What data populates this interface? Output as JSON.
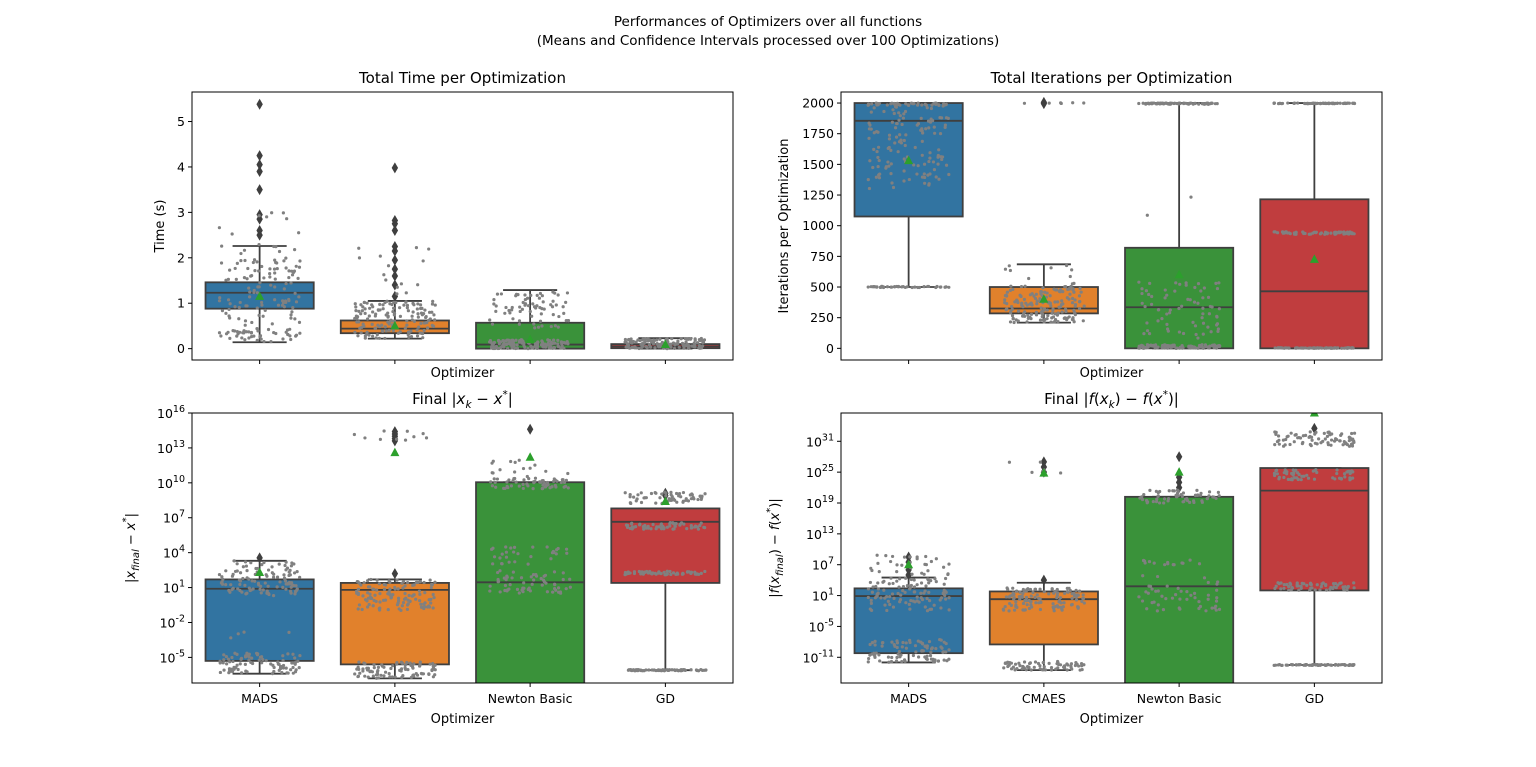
{
  "figure": {
    "suptitle_line1": "Performances of Optimizers over all functions",
    "suptitle_line2": "(Means and Confidence Intervals processed over 100 Optimizations)"
  },
  "colors": {
    "MADS": "#3274a1",
    "CMAES": "#e1812c",
    "Newton Basic": "#3a923a",
    "GD": "#c03d3e",
    "points": "#808080",
    "mean_marker": "#2ca02c",
    "box_edge": "#3f3f3f"
  },
  "chart_data": [
    {
      "type": "box",
      "title": "Total Time per Optimization",
      "xlabel": "Optimizer",
      "ylabel": "Time (s)",
      "categories": [
        "MADS",
        "CMAES",
        "Newton Basic",
        "GD"
      ],
      "show_xticklabels": false,
      "scale": "linear",
      "ylim": [
        -0.25,
        5.65
      ],
      "yticks": [
        0,
        1,
        2,
        3,
        4,
        5
      ],
      "ytick_labels": [
        "0",
        "1",
        "2",
        "3",
        "4",
        "5"
      ],
      "boxes": [
        {
          "q1": 0.88,
          "median": 1.23,
          "q3": 1.46,
          "whisker_low": 0.14,
          "whisker_high": 2.26,
          "mean": 1.15,
          "fliers": [
            2.5,
            2.6,
            2.85,
            2.95,
            3.5,
            3.9,
            4.05,
            4.25,
            5.38
          ],
          "clusters": [
            [
              0.15,
              0.45,
              45
            ],
            [
              0.5,
              2.3,
              110
            ],
            [
              2.5,
              3.0,
              8
            ]
          ]
        },
        {
          "q1": 0.34,
          "median": 0.44,
          "q3": 0.62,
          "whisker_low": 0.22,
          "whisker_high": 1.05,
          "mean": 0.5,
          "fliers": [
            1.15,
            1.4,
            1.6,
            1.75,
            1.95,
            2.15,
            2.25,
            2.6,
            2.75,
            2.82,
            3.98
          ],
          "clusters": [
            [
              0.22,
              1.05,
              150
            ],
            [
              1.1,
              2.3,
              14
            ]
          ]
        },
        {
          "q1": 0.0,
          "median": 0.09,
          "q3": 0.57,
          "whisker_low": 0.0,
          "whisker_high": 1.29,
          "mean": 0.2,
          "fliers": [],
          "clusters": [
            [
              0.0,
              0.2,
              120
            ],
            [
              0.45,
              1.25,
              70
            ]
          ]
        },
        {
          "q1": 0.01,
          "median": 0.05,
          "q3": 0.1,
          "whisker_low": 0.0,
          "whisker_high": 0.23,
          "mean": 0.09,
          "fliers": [],
          "clusters": [
            [
              0.0,
              0.23,
              130
            ]
          ]
        }
      ]
    },
    {
      "type": "box",
      "title": "Total Iterations per Optimization",
      "xlabel": "Optimizer",
      "ylabel": "Iterations per Optimization",
      "categories": [
        "MADS",
        "CMAES",
        "Newton Basic",
        "GD"
      ],
      "show_xticklabels": false,
      "scale": "linear",
      "ylim": [
        -95,
        2090
      ],
      "yticks": [
        0,
        250,
        500,
        750,
        1000,
        1250,
        1500,
        1750,
        2000
      ],
      "ytick_labels": [
        "0",
        "250",
        "500",
        "750",
        "1000",
        "1250",
        "1500",
        "1750",
        "2000"
      ],
      "boxes": [
        {
          "q1": 1075,
          "median": 1855,
          "q3": 2000,
          "whisker_low": 500,
          "whisker_high": 2000,
          "mean": 1530,
          "fliers": [],
          "clusters": [
            [
              495,
              505,
              40
            ],
            [
              1300,
              2000,
              130
            ],
            [
              1980,
              2000,
              40
            ]
          ]
        },
        {
          "q1": 285,
          "median": 325,
          "q3": 500,
          "whisker_low": 210,
          "whisker_high": 685,
          "mean": 400,
          "fliers": [
            1995,
            2005
          ],
          "clusters": [
            [
              210,
              510,
              160
            ],
            [
              510,
              680,
              10
            ],
            [
              1995,
              2005,
              6
            ]
          ]
        },
        {
          "q1": 0,
          "median": 335,
          "q3": 820,
          "whisker_low": 0,
          "whisker_high": 2000,
          "mean": 600,
          "fliers": [],
          "clusters": [
            [
              0,
              30,
              100
            ],
            [
              80,
              550,
              70
            ],
            [
              1990,
              2000,
              70
            ],
            [
              950,
              1300,
              2
            ]
          ]
        },
        {
          "q1": 0,
          "median": 465,
          "q3": 1215,
          "whisker_low": 0,
          "whisker_high": 2000,
          "mean": 725,
          "fliers": [],
          "clusters": [
            [
              0,
              5,
              60
            ],
            [
              930,
              950,
              60
            ],
            [
              1995,
              2000,
              70
            ]
          ]
        }
      ]
    },
    {
      "type": "box",
      "title": "Final |x_k − x*|",
      "xlabel": "Optimizer",
      "ylabel": "|x_final − x*|",
      "categories": [
        "MADS",
        "CMAES",
        "Newton Basic",
        "GD"
      ],
      "show_xticklabels": true,
      "scale": "log10",
      "ylim_exp": [
        -7.2,
        16
      ],
      "ytick_exps": [
        -5,
        -2,
        1,
        4,
        7,
        10,
        13,
        16
      ],
      "ytick_labels": [
        "10^-5",
        "10^-2",
        "10^1",
        "10^4",
        "10^7",
        "10^10",
        "10^13",
        "10^16"
      ],
      "boxes": [
        {
          "q1": -5.3,
          "median": 0.9,
          "q3": 1.7,
          "whisker_low": -6.4,
          "whisker_high": 3.3,
          "mean": 2.3,
          "fliers": [
            3.55
          ],
          "clusters": [
            [
              -6.4,
              -4.6,
              90
            ],
            [
              0.3,
              3.3,
              110
            ],
            [
              -3.5,
              -2.8,
              4
            ]
          ]
        },
        {
          "q1": -5.6,
          "median": 0.8,
          "q3": 1.4,
          "whisker_low": -6.8,
          "whisker_high": 1.7,
          "mean": 12.6,
          "fliers": [
            2.2,
            13.6,
            13.8,
            14.0,
            14.2,
            14.4
          ],
          "clusters": [
            [
              -6.8,
              -5.4,
              90
            ],
            [
              -1.0,
              1.7,
              120
            ],
            [
              13.6,
              14.5,
              10
            ]
          ]
        },
        {
          "q1": -8.0,
          "median": 1.45,
          "q3": 10.05,
          "whisker_low": -8.0,
          "whisker_high": 10.05,
          "mean": 12.2,
          "fliers": [
            14.6
          ],
          "clusters": [
            [
              0.5,
              2.5,
              60
            ],
            [
              3.0,
              4.5,
              30
            ],
            [
              9.5,
              10.4,
              60
            ],
            [
              10.5,
              12.0,
              15
            ]
          ]
        },
        {
          "q1": 1.4,
          "median": 6.65,
          "q3": 7.8,
          "whisker_low": -6.1,
          "whisker_high": 7.8,
          "mean": 8.4,
          "fliers": [
            8.9,
            9.1
          ],
          "clusters": [
            [
              -6.15,
              -6.05,
              70
            ],
            [
              2.1,
              2.4,
              60
            ],
            [
              6.0,
              6.6,
              60
            ],
            [
              8.2,
              9.2,
              60
            ]
          ]
        }
      ]
    },
    {
      "type": "box",
      "title": "Final |f(x_k) − f(x*)|",
      "xlabel": "Optimizer",
      "ylabel": "|f(x_final) − f(x*)|",
      "categories": [
        "MADS",
        "CMAES",
        "Newton Basic",
        "GD"
      ],
      "show_xticklabels": true,
      "scale": "log10",
      "ylim_exp": [
        -16,
        36.5
      ],
      "ytick_exps": [
        -11,
        -5,
        1,
        7,
        13,
        19,
        25,
        31
      ],
      "ytick_labels": [
        "10^-11",
        "10^-5",
        "10^1",
        "10^7",
        "10^13",
        "10^19",
        "10^25",
        "10^31"
      ],
      "boxes": [
        {
          "q1": -10.2,
          "median": 0.9,
          "q3": 2.4,
          "whisker_low": -12.0,
          "whisker_high": 4.5,
          "mean": 7.0,
          "fliers": [
            5.0,
            6.0,
            7.5,
            8.5
          ],
          "clusters": [
            [
              -12.0,
              -7.5,
              90
            ],
            [
              -2.0,
              4.5,
              100
            ],
            [
              5.0,
              9.0,
              30
            ]
          ]
        },
        {
          "q1": -8.5,
          "median": 0.3,
          "q3": 1.8,
          "whisker_low": -13.5,
          "whisker_high": 3.5,
          "mean": 24.8,
          "fliers": [
            4.0,
            25.0,
            26.0,
            27.0
          ],
          "clusters": [
            [
              -13.5,
              -11.8,
              70
            ],
            [
              -2.0,
              2.5,
              120
            ],
            [
              24.0,
              27.0,
              6
            ]
          ]
        },
        {
          "q1": -17.0,
          "median": 2.8,
          "q3": 20.2,
          "whisker_low": -17.0,
          "whisker_high": 20.2,
          "mean": 25.0,
          "fliers": [
            22.0,
            23.0,
            24.0,
            28.0
          ],
          "clusters": [
            [
              -2.0,
              5.0,
              50
            ],
            [
              19.0,
              21.5,
              60
            ],
            [
              7.0,
              8.0,
              15
            ]
          ]
        },
        {
          "q1": 2.0,
          "median": 21.4,
          "q3": 25.8,
          "whisker_low": -12.5,
          "whisker_high": 25.8,
          "mean": 38.0,
          "fliers": [
            33.5
          ],
          "clusters": [
            [
              -12.6,
              -12.4,
              70
            ],
            [
              2.0,
              3.5,
              60
            ],
            [
              23.5,
              25.5,
              60
            ],
            [
              30.0,
              33.0,
              80
            ]
          ]
        }
      ]
    }
  ]
}
